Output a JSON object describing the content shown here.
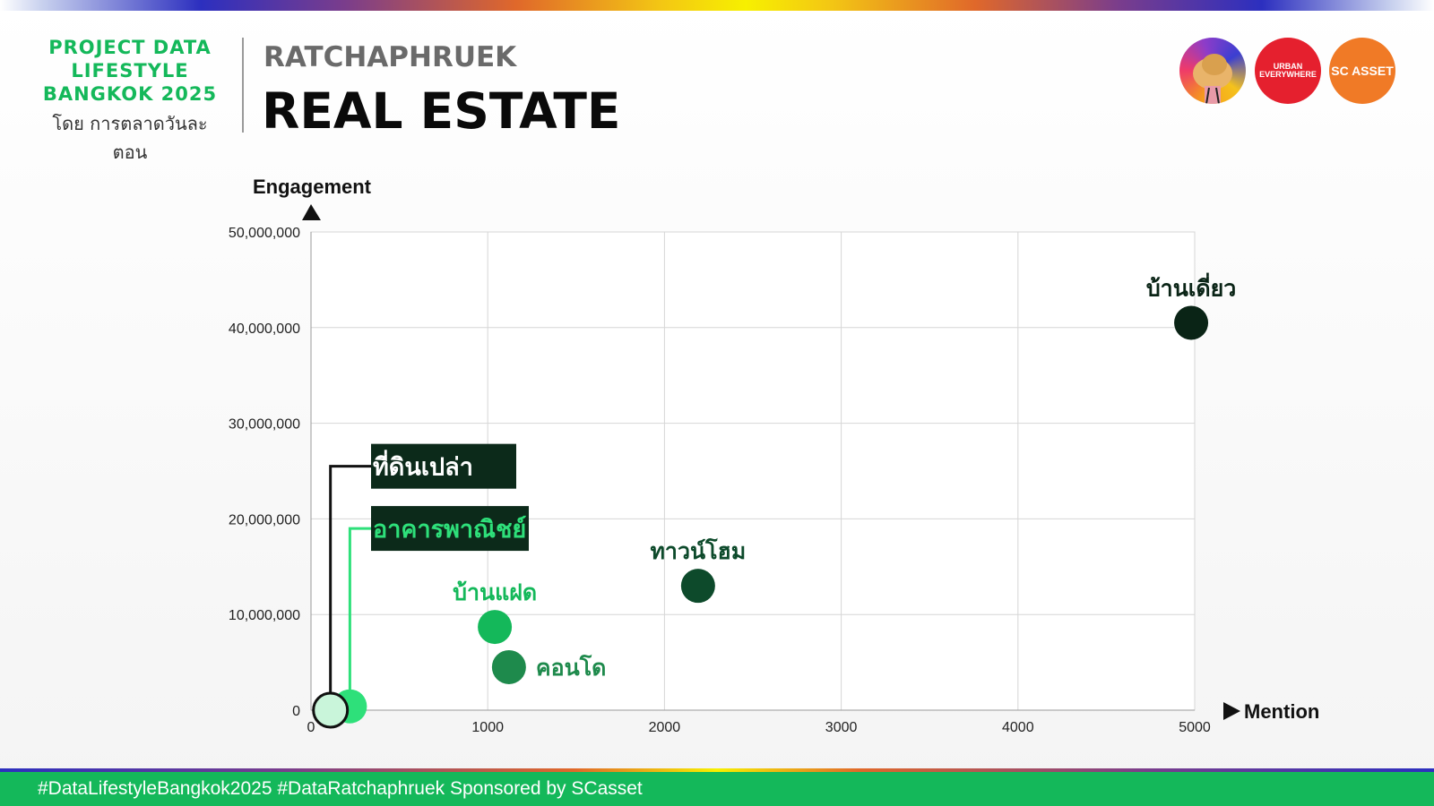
{
  "header": {
    "brand_lines": [
      "PROJECT DATA",
      "LIFESTYLE",
      "BANGKOK 2025"
    ],
    "brand_sub": "โดย การตลาดวันละตอน",
    "subtitle": "RATCHAPHRUEK",
    "title": "REAL ESTATE"
  },
  "logos": {
    "urban_line1": "URBAN",
    "urban_line2": "EVERYWHERE",
    "sc": "SC ASSET"
  },
  "colors": {
    "brand_green": "#14b85a",
    "footer_bg": "#14b85a",
    "label_box_bg": "#0c2a1a"
  },
  "footer": {
    "text": "#DataLifestyleBangkok2025 #DataRatchaphruek Sponsored by SCasset"
  },
  "chart_data": {
    "type": "scatter",
    "xlabel": "Mention",
    "ylabel": "Engagement",
    "xlim": [
      0,
      5000
    ],
    "ylim": [
      0,
      50000000
    ],
    "x_ticks": [
      0,
      1000,
      2000,
      3000,
      4000,
      5000
    ],
    "y_ticks": [
      0,
      10000000,
      20000000,
      30000000,
      40000000,
      50000000
    ],
    "x_tick_labels": [
      "0",
      "1000",
      "2000",
      "3000",
      "4000",
      "5000"
    ],
    "y_tick_labels": [
      "0",
      "10,000,000",
      "20,000,000",
      "30,000,000",
      "40,000,000",
      "50,000,000"
    ],
    "grid": true,
    "points": [
      {
        "label": "บ้านเดี่ยว",
        "x": 4980,
        "y": 40500000,
        "color": "#0a2416",
        "label_color": "#0a2416",
        "label_side": "above",
        "boxed": false
      },
      {
        "label": "ทาวน์โฮม",
        "x": 2190,
        "y": 13000000,
        "color": "#0d4a2b",
        "label_color": "#0d4a2b",
        "label_side": "above",
        "boxed": false
      },
      {
        "label": "บ้านแฝด",
        "x": 1040,
        "y": 8700000,
        "color": "#14b85a",
        "label_color": "#14b85a",
        "label_side": "above",
        "boxed": false
      },
      {
        "label": "คอนโด",
        "x": 1120,
        "y": 4500000,
        "color": "#1e8a4c",
        "label_color": "#1e8a4c",
        "label_side": "right",
        "boxed": false
      },
      {
        "label": "อาคารพาณิชย์",
        "x": 220,
        "y": 400000,
        "color": "#2ee07a",
        "label_color": "#2ee07a",
        "label_side": "box",
        "box_y": 19000000,
        "boxed": true
      },
      {
        "label": "ที่ดินเปล่า",
        "x": 110,
        "y": 0,
        "color": "#c9f5da",
        "label_color": "#ffffff",
        "label_side": "box",
        "box_y": 25500000,
        "boxed": true,
        "leader_color": "#111111"
      }
    ]
  }
}
